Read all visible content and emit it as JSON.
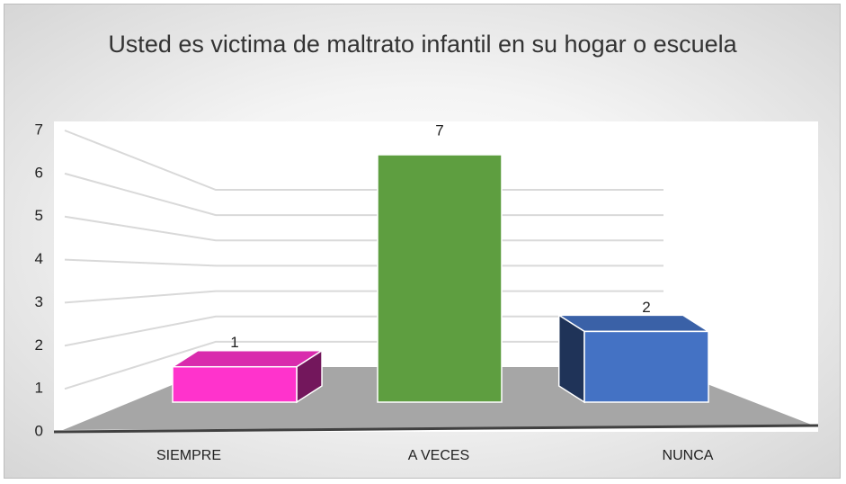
{
  "chart_data": {
    "type": "bar3d",
    "title": "Usted es victima de maltrato infantil en su hogar o escuela",
    "categories": [
      "SIEMPRE",
      "A VECES",
      "NUNCA"
    ],
    "values": [
      1,
      7,
      2
    ],
    "colors": [
      "#ff33cc",
      "#5e9e40",
      "#4472c4"
    ],
    "ylim": [
      0,
      7
    ],
    "yticks": [
      0,
      1,
      2,
      3,
      4,
      5,
      6,
      7
    ],
    "grid": true
  }
}
